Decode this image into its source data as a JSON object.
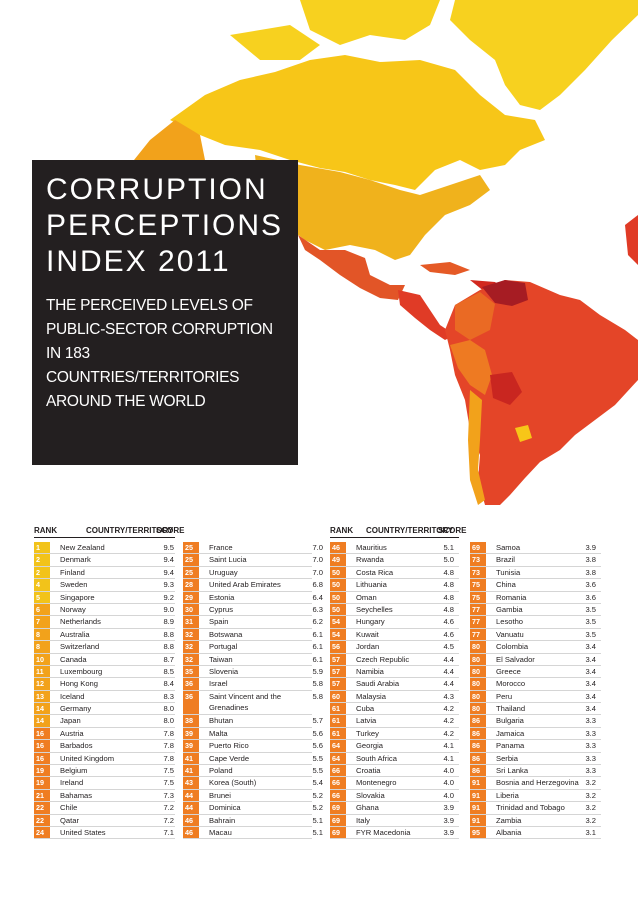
{
  "title_lines": [
    "CORRUPTION",
    "PERCEPTIONS",
    "INDEX 2011"
  ],
  "subtitle_lines": [
    "THE PERCEIVED LEVELS OF",
    "PUBLIC-SECTOR CORRUPTION",
    "IN 183 COUNTRIES/TERRITORIES",
    "AROUND THE WORLD"
  ],
  "table_header": {
    "rank": "RANK",
    "country": "COUNTRY/TERRITORY",
    "score": "SCORE"
  },
  "colors": {
    "rank_1_5": "#f2c31a",
    "rank_6_15": "#f2a21b",
    "rank_16_30": "#ef7d22",
    "dark_box": "#231f20"
  },
  "columns": [
    [
      {
        "rank": "1",
        "country": "New Zealand",
        "score": "9.5"
      },
      {
        "rank": "2",
        "country": "Denmark",
        "score": "9.4"
      },
      {
        "rank": "2",
        "country": "Finland",
        "score": "9.4"
      },
      {
        "rank": "4",
        "country": "Sweden",
        "score": "9.3"
      },
      {
        "rank": "5",
        "country": "Singapore",
        "score": "9.2"
      },
      {
        "rank": "6",
        "country": "Norway",
        "score": "9.0"
      },
      {
        "rank": "7",
        "country": "Netherlands",
        "score": "8.9"
      },
      {
        "rank": "8",
        "country": "Australia",
        "score": "8.8"
      },
      {
        "rank": "8",
        "country": "Switzerland",
        "score": "8.8"
      },
      {
        "rank": "10",
        "country": "Canada",
        "score": "8.7"
      },
      {
        "rank": "11",
        "country": "Luxembourg",
        "score": "8.5"
      },
      {
        "rank": "12",
        "country": "Hong Kong",
        "score": "8.4"
      },
      {
        "rank": "13",
        "country": "Iceland",
        "score": "8.3"
      },
      {
        "rank": "14",
        "country": "Germany",
        "score": "8.0"
      },
      {
        "rank": "14",
        "country": "Japan",
        "score": "8.0"
      },
      {
        "rank": "16",
        "country": "Austria",
        "score": "7.8"
      },
      {
        "rank": "16",
        "country": "Barbados",
        "score": "7.8"
      },
      {
        "rank": "16",
        "country": "United Kingdom",
        "score": "7.8"
      },
      {
        "rank": "19",
        "country": "Belgium",
        "score": "7.5"
      },
      {
        "rank": "19",
        "country": "Ireland",
        "score": "7.5"
      },
      {
        "rank": "21",
        "country": "Bahamas",
        "score": "7.3"
      },
      {
        "rank": "22",
        "country": "Chile",
        "score": "7.2"
      },
      {
        "rank": "22",
        "country": "Qatar",
        "score": "7.2"
      },
      {
        "rank": "24",
        "country": "United States",
        "score": "7.1"
      }
    ],
    [
      {
        "rank": "25",
        "country": "France",
        "score": "7.0"
      },
      {
        "rank": "25",
        "country": "Saint Lucia",
        "score": "7.0"
      },
      {
        "rank": "25",
        "country": "Uruguay",
        "score": "7.0"
      },
      {
        "rank": "28",
        "country": "United Arab Emirates",
        "score": "6.8"
      },
      {
        "rank": "29",
        "country": "Estonia",
        "score": "6.4"
      },
      {
        "rank": "30",
        "country": "Cyprus",
        "score": "6.3"
      },
      {
        "rank": "31",
        "country": "Spain",
        "score": "6.2"
      },
      {
        "rank": "32",
        "country": "Botswana",
        "score": "6.1"
      },
      {
        "rank": "32",
        "country": "Portugal",
        "score": "6.1"
      },
      {
        "rank": "32",
        "country": "Taiwan",
        "score": "6.1"
      },
      {
        "rank": "35",
        "country": "Slovenia",
        "score": "5.9"
      },
      {
        "rank": "36",
        "country": "Israel",
        "score": "5.8"
      },
      {
        "rank": "36",
        "country": "Saint Vincent and the Grenadines",
        "score": "5.8",
        "tall": true
      },
      {
        "rank": "38",
        "country": "Bhutan",
        "score": "5.7"
      },
      {
        "rank": "39",
        "country": "Malta",
        "score": "5.6"
      },
      {
        "rank": "39",
        "country": "Puerto Rico",
        "score": "5.6"
      },
      {
        "rank": "41",
        "country": "Cape Verde",
        "score": "5.5"
      },
      {
        "rank": "41",
        "country": "Poland",
        "score": "5.5"
      },
      {
        "rank": "43",
        "country": "Korea (South)",
        "score": "5.4"
      },
      {
        "rank": "44",
        "country": "Brunei",
        "score": "5.2"
      },
      {
        "rank": "44",
        "country": "Dominica",
        "score": "5.2"
      },
      {
        "rank": "46",
        "country": "Bahrain",
        "score": "5.1"
      },
      {
        "rank": "46",
        "country": "Macau",
        "score": "5.1"
      }
    ],
    [
      {
        "rank": "46",
        "country": "Mauritius",
        "score": "5.1"
      },
      {
        "rank": "49",
        "country": "Rwanda",
        "score": "5.0"
      },
      {
        "rank": "50",
        "country": "Costa Rica",
        "score": "4.8"
      },
      {
        "rank": "50",
        "country": "Lithuania",
        "score": "4.8"
      },
      {
        "rank": "50",
        "country": "Oman",
        "score": "4.8"
      },
      {
        "rank": "50",
        "country": "Seychelles",
        "score": "4.8"
      },
      {
        "rank": "54",
        "country": "Hungary",
        "score": "4.6"
      },
      {
        "rank": "54",
        "country": "Kuwait",
        "score": "4.6"
      },
      {
        "rank": "56",
        "country": "Jordan",
        "score": "4.5"
      },
      {
        "rank": "57",
        "country": "Czech Republic",
        "score": "4.4"
      },
      {
        "rank": "57",
        "country": "Namibia",
        "score": "4.4"
      },
      {
        "rank": "57",
        "country": "Saudi Arabia",
        "score": "4.4"
      },
      {
        "rank": "60",
        "country": "Malaysia",
        "score": "4.3"
      },
      {
        "rank": "61",
        "country": "Cuba",
        "score": "4.2"
      },
      {
        "rank": "61",
        "country": "Latvia",
        "score": "4.2"
      },
      {
        "rank": "61",
        "country": "Turkey",
        "score": "4.2"
      },
      {
        "rank": "64",
        "country": "Georgia",
        "score": "4.1"
      },
      {
        "rank": "64",
        "country": "South Africa",
        "score": "4.1"
      },
      {
        "rank": "66",
        "country": "Croatia",
        "score": "4.0"
      },
      {
        "rank": "66",
        "country": "Montenegro",
        "score": "4.0"
      },
      {
        "rank": "66",
        "country": "Slovakia",
        "score": "4.0"
      },
      {
        "rank": "69",
        "country": "Ghana",
        "score": "3.9"
      },
      {
        "rank": "69",
        "country": "Italy",
        "score": "3.9"
      },
      {
        "rank": "69",
        "country": "FYR Macedonia",
        "score": "3.9"
      }
    ],
    [
      {
        "rank": "69",
        "country": "Samoa",
        "score": "3.9"
      },
      {
        "rank": "73",
        "country": "Brazil",
        "score": "3.8"
      },
      {
        "rank": "73",
        "country": "Tunisia",
        "score": "3.8"
      },
      {
        "rank": "75",
        "country": "China",
        "score": "3.6"
      },
      {
        "rank": "75",
        "country": "Romania",
        "score": "3.6"
      },
      {
        "rank": "77",
        "country": "Gambia",
        "score": "3.5"
      },
      {
        "rank": "77",
        "country": "Lesotho",
        "score": "3.5"
      },
      {
        "rank": "77",
        "country": "Vanuatu",
        "score": "3.5"
      },
      {
        "rank": "80",
        "country": "Colombia",
        "score": "3.4"
      },
      {
        "rank": "80",
        "country": "El Salvador",
        "score": "3.4"
      },
      {
        "rank": "80",
        "country": "Greece",
        "score": "3.4"
      },
      {
        "rank": "80",
        "country": "Morocco",
        "score": "3.4"
      },
      {
        "rank": "80",
        "country": "Peru",
        "score": "3.4"
      },
      {
        "rank": "80",
        "country": "Thailand",
        "score": "3.4"
      },
      {
        "rank": "86",
        "country": "Bulgaria",
        "score": "3.3"
      },
      {
        "rank": "86",
        "country": "Jamaica",
        "score": "3.3"
      },
      {
        "rank": "86",
        "country": "Panama",
        "score": "3.3"
      },
      {
        "rank": "86",
        "country": "Serbia",
        "score": "3.3"
      },
      {
        "rank": "86",
        "country": "Sri Lanka",
        "score": "3.3"
      },
      {
        "rank": "91",
        "country": "Bosnia and Herzegovina",
        "score": "3.2"
      },
      {
        "rank": "91",
        "country": "Liberia",
        "score": "3.2"
      },
      {
        "rank": "91",
        "country": "Trinidad and Tobago",
        "score": "3.2"
      },
      {
        "rank": "91",
        "country": "Zambia",
        "score": "3.2"
      },
      {
        "rank": "95",
        "country": "Albania",
        "score": "3.1"
      }
    ]
  ]
}
